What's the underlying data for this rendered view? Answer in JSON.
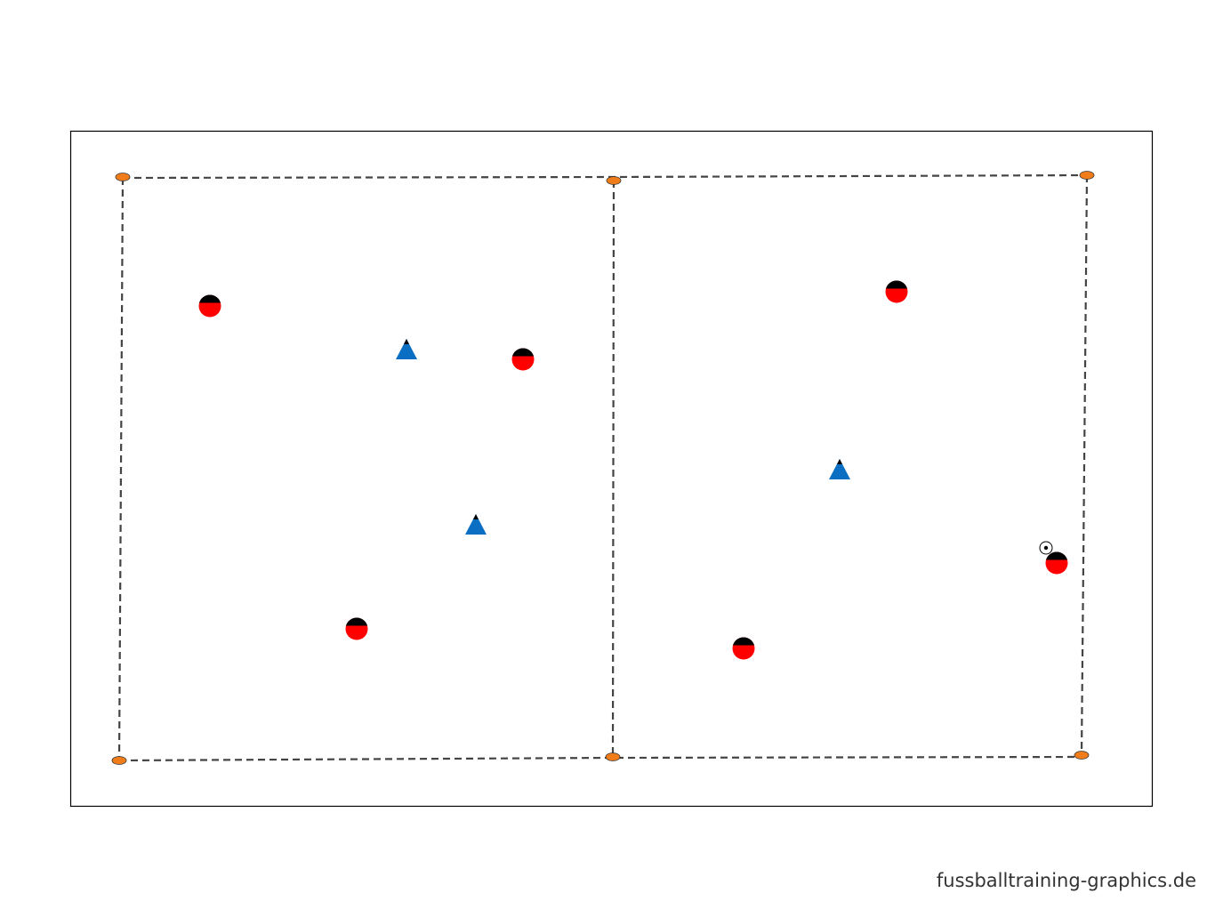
{
  "watermark": "fussballtraining-graphics.de"
}
